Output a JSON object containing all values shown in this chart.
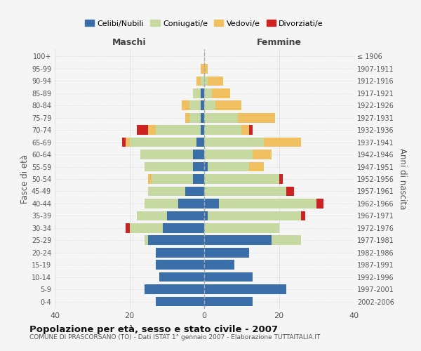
{
  "age_groups": [
    "0-4",
    "5-9",
    "10-14",
    "15-19",
    "20-24",
    "25-29",
    "30-34",
    "35-39",
    "40-44",
    "45-49",
    "50-54",
    "55-59",
    "60-64",
    "65-69",
    "70-74",
    "75-79",
    "80-84",
    "85-89",
    "90-94",
    "95-99",
    "100+"
  ],
  "birth_years": [
    "2002-2006",
    "1997-2001",
    "1992-1996",
    "1987-1991",
    "1982-1986",
    "1977-1981",
    "1972-1976",
    "1967-1971",
    "1962-1966",
    "1957-1961",
    "1952-1956",
    "1947-1951",
    "1942-1946",
    "1937-1941",
    "1932-1936",
    "1927-1931",
    "1922-1926",
    "1917-1921",
    "1912-1916",
    "1907-1911",
    "≤ 1906"
  ],
  "males": {
    "celibi": [
      13,
      16,
      12,
      13,
      13,
      15,
      11,
      10,
      7,
      5,
      3,
      3,
      3,
      2,
      1,
      1,
      1,
      1,
      0,
      0,
      0
    ],
    "coniugati": [
      0,
      0,
      0,
      0,
      0,
      1,
      9,
      8,
      9,
      10,
      11,
      13,
      14,
      18,
      12,
      3,
      3,
      2,
      1,
      0,
      0
    ],
    "vedovi": [
      0,
      0,
      0,
      0,
      0,
      0,
      0,
      0,
      0,
      0,
      1,
      0,
      0,
      1,
      2,
      1,
      2,
      0,
      1,
      1,
      0
    ],
    "divorziati": [
      0,
      0,
      0,
      0,
      0,
      0,
      1,
      0,
      0,
      0,
      0,
      0,
      0,
      1,
      3,
      0,
      0,
      0,
      0,
      0,
      0
    ]
  },
  "females": {
    "nubili": [
      13,
      22,
      13,
      8,
      12,
      18,
      0,
      1,
      4,
      0,
      0,
      1,
      0,
      0,
      0,
      0,
      0,
      0,
      0,
      0,
      0
    ],
    "coniugate": [
      0,
      0,
      0,
      0,
      0,
      8,
      20,
      25,
      26,
      22,
      20,
      11,
      13,
      16,
      10,
      9,
      3,
      2,
      1,
      0,
      0
    ],
    "vedove": [
      0,
      0,
      0,
      0,
      0,
      0,
      0,
      0,
      0,
      0,
      0,
      4,
      5,
      10,
      2,
      10,
      7,
      5,
      4,
      1,
      0
    ],
    "divorziate": [
      0,
      0,
      0,
      0,
      0,
      0,
      0,
      1,
      2,
      2,
      1,
      0,
      0,
      0,
      1,
      0,
      0,
      0,
      0,
      0,
      0
    ]
  },
  "colors": {
    "celibi": "#3a6ea8",
    "coniugati": "#c5d9a0",
    "vedovi": "#f0c060",
    "divorziati": "#cc2222"
  },
  "title": "Popolazione per età, sesso e stato civile - 2007",
  "subtitle": "COMUNE DI PRASCORSANO (TO) - Dati ISTAT 1° gennaio 2007 - Elaborazione TUTTAITALIA.IT",
  "xlabel_left": "Maschi",
  "xlabel_right": "Femmine",
  "ylabel_left": "Fasce di età",
  "ylabel_right": "Anni di nascita",
  "xlim": 40,
  "bg_color": "#f5f5f5",
  "grid_color": "#dddddd",
  "legend_labels": [
    "Celibi/Nubili",
    "Coniugati/e",
    "Vedovi/e",
    "Divorziati/e"
  ]
}
